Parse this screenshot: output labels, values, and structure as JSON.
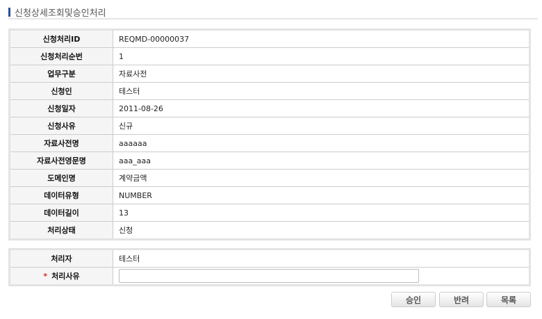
{
  "title": "신청상세조회및승인처리",
  "details": [
    {
      "label": "신청처리ID",
      "value": "REQMD-00000037"
    },
    {
      "label": "신청처리순번",
      "value": "1"
    },
    {
      "label": "업무구분",
      "value": "자료사전"
    },
    {
      "label": "신청인",
      "value": "테스터"
    },
    {
      "label": "신청일자",
      "value": "2011-08-26"
    },
    {
      "label": "신청사유",
      "value": "신규"
    },
    {
      "label": "자료사전명",
      "value": "aaaaaa"
    },
    {
      "label": "자료사전영문명",
      "value": "aaa_aaa"
    },
    {
      "label": "도메인명",
      "value": "계약금액"
    },
    {
      "label": "데이터유형",
      "value": "NUMBER"
    },
    {
      "label": "데이터길이",
      "value": "13"
    },
    {
      "label": "처리상태",
      "value": "신청"
    }
  ],
  "process": {
    "handler_label": "처리자",
    "handler_value": "테스터",
    "reason_label": "처리사유",
    "required_mark": "*",
    "reason_value": ""
  },
  "buttons": {
    "approve": "승인",
    "reject": "반려",
    "list": "목록"
  }
}
